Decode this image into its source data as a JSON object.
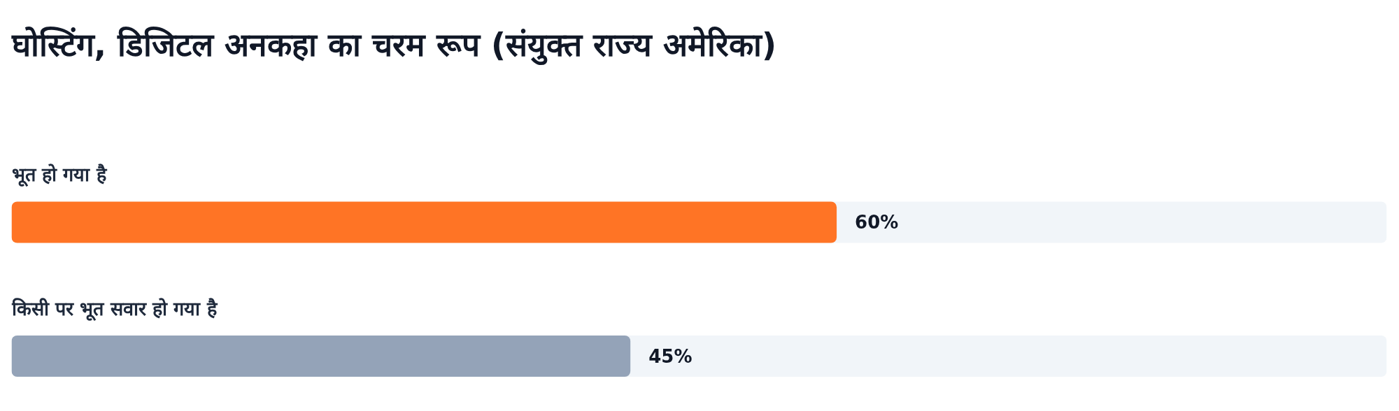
{
  "chart_data": {
    "type": "bar",
    "orientation": "horizontal",
    "title": "घोस्टिंग, डिजिटल अनकहा का चरम रूप (संयुक्त राज्य अमेरिका)",
    "categories": [
      "भूत हो गया है",
      "किसी पर भूत सवार हो गया है"
    ],
    "values": [
      60,
      45
    ],
    "colors": [
      "#ff7425",
      "#94a3b8"
    ],
    "value_labels": [
      "60%",
      "45%"
    ],
    "xlim": [
      0,
      100
    ],
    "tick_labels": false
  }
}
